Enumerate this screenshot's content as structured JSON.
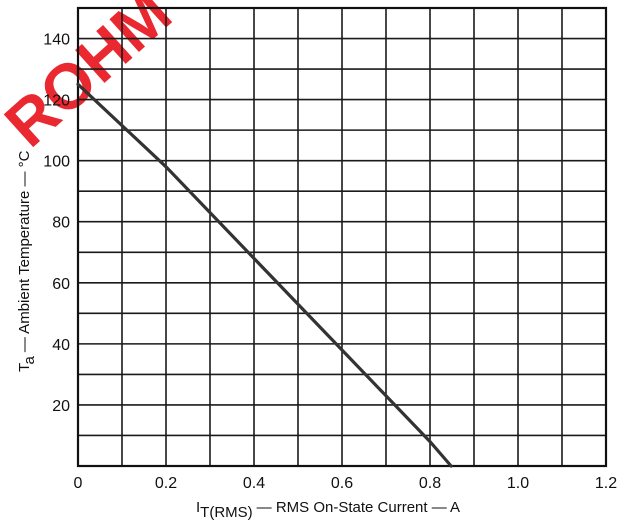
{
  "chart_data": {
    "type": "line",
    "title": "",
    "xlabel": {
      "main": "I",
      "sub": "T(RMS)",
      "rest": "— RMS On-State Current — A"
    },
    "ylabel": {
      "main": "T",
      "sub": "a",
      "rest": "— Ambient Temperature — °C"
    },
    "xlim": [
      0,
      1.2
    ],
    "ylim": [
      0,
      150
    ],
    "x_minor_step": 0.1,
    "y_minor_step": 10,
    "x_tick_labels": [
      {
        "value": 0,
        "label": "0"
      },
      {
        "value": 0.2,
        "label": "0.2"
      },
      {
        "value": 0.4,
        "label": "0.4"
      },
      {
        "value": 0.6,
        "label": "0.6"
      },
      {
        "value": 0.8,
        "label": "0.8"
      },
      {
        "value": 1.0,
        "label": "1.0"
      },
      {
        "value": 1.2,
        "label": "1.2"
      }
    ],
    "y_tick_labels": [
      {
        "value": 20,
        "label": "20"
      },
      {
        "value": 40,
        "label": "40"
      },
      {
        "value": 60,
        "label": "60"
      },
      {
        "value": 80,
        "label": "80"
      },
      {
        "value": 100,
        "label": "100"
      },
      {
        "value": 120,
        "label": "120"
      },
      {
        "value": 140,
        "label": "140"
      }
    ],
    "grid": true,
    "series": [
      {
        "x": [
          0,
          0.2,
          0.4,
          0.6,
          0.8,
          0.848
        ],
        "y": [
          125,
          98,
          68,
          38,
          8,
          0
        ]
      }
    ]
  },
  "watermark": {
    "text": "ROHM",
    "color": "#e8111a"
  }
}
